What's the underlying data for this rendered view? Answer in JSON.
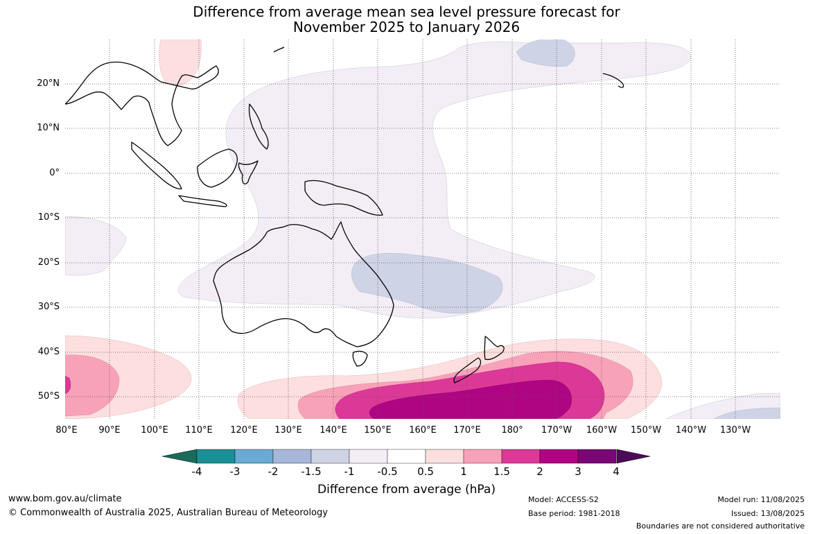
{
  "title": {
    "line1": "Difference from average mean sea level pressure forecast for",
    "line2": "November 2025 to January 2026"
  },
  "map": {
    "lat_labels": [
      "20°N",
      "10°N",
      "0°",
      "10°S",
      "20°S",
      "30°S",
      "40°S",
      "50°S"
    ],
    "lon_labels": [
      "80°E",
      "90°E",
      "100°E",
      "110°E",
      "120°E",
      "130°E",
      "140°E",
      "150°E",
      "160°E",
      "170°E",
      "180°",
      "170°W",
      "160°W",
      "150°W",
      "140°W",
      "130°W"
    ],
    "gridlines": "dotted",
    "colors": {
      "neg_4": "#1a6b5a",
      "neg_3": "#1a8f96",
      "neg_2": "#68abd4",
      "neg_1_5": "#a6b7da",
      "neg_1": "#cfd3e6",
      "neg_0_5": "#f3edf6",
      "neutral": "#ffffff",
      "pos_0_5": "#fddfdf",
      "pos_1": "#f8a2b9",
      "pos_1_5": "#dc3898",
      "pos_2": "#b00583",
      "pos_3": "#7b0677",
      "pos_4": "#4c0b5a"
    }
  },
  "colorbar": {
    "labels": [
      "-4",
      "-3",
      "-2",
      "-1.5",
      "-1",
      "-0.5",
      "0.5",
      "1",
      "1.5",
      "2",
      "3",
      "4"
    ],
    "title": "Difference from average (hPa)",
    "bins": [
      "#1a8f96",
      "#68abd4",
      "#a6b7da",
      "#cfd3e6",
      "#f3edf6",
      "#ffffff",
      "#fddfdf",
      "#f8a2b9",
      "#dc3898",
      "#b00583",
      "#7b0677"
    ],
    "low_end_color": "#1a6b5a",
    "high_end_color": "#4c0b5a"
  },
  "footer": {
    "website": "www.bom.gov.au/climate",
    "copyright": "© Commonwealth of Australia 2025, Australian Bureau of Meteorology",
    "model": "Model: ACCESS-S2",
    "base_period": "Base period: 1981-2018",
    "model_run": "Model run: 11/08/2025",
    "issued": "Issued: 13/08/2025",
    "disclaimer": "Boundaries are not considered authoritative"
  }
}
